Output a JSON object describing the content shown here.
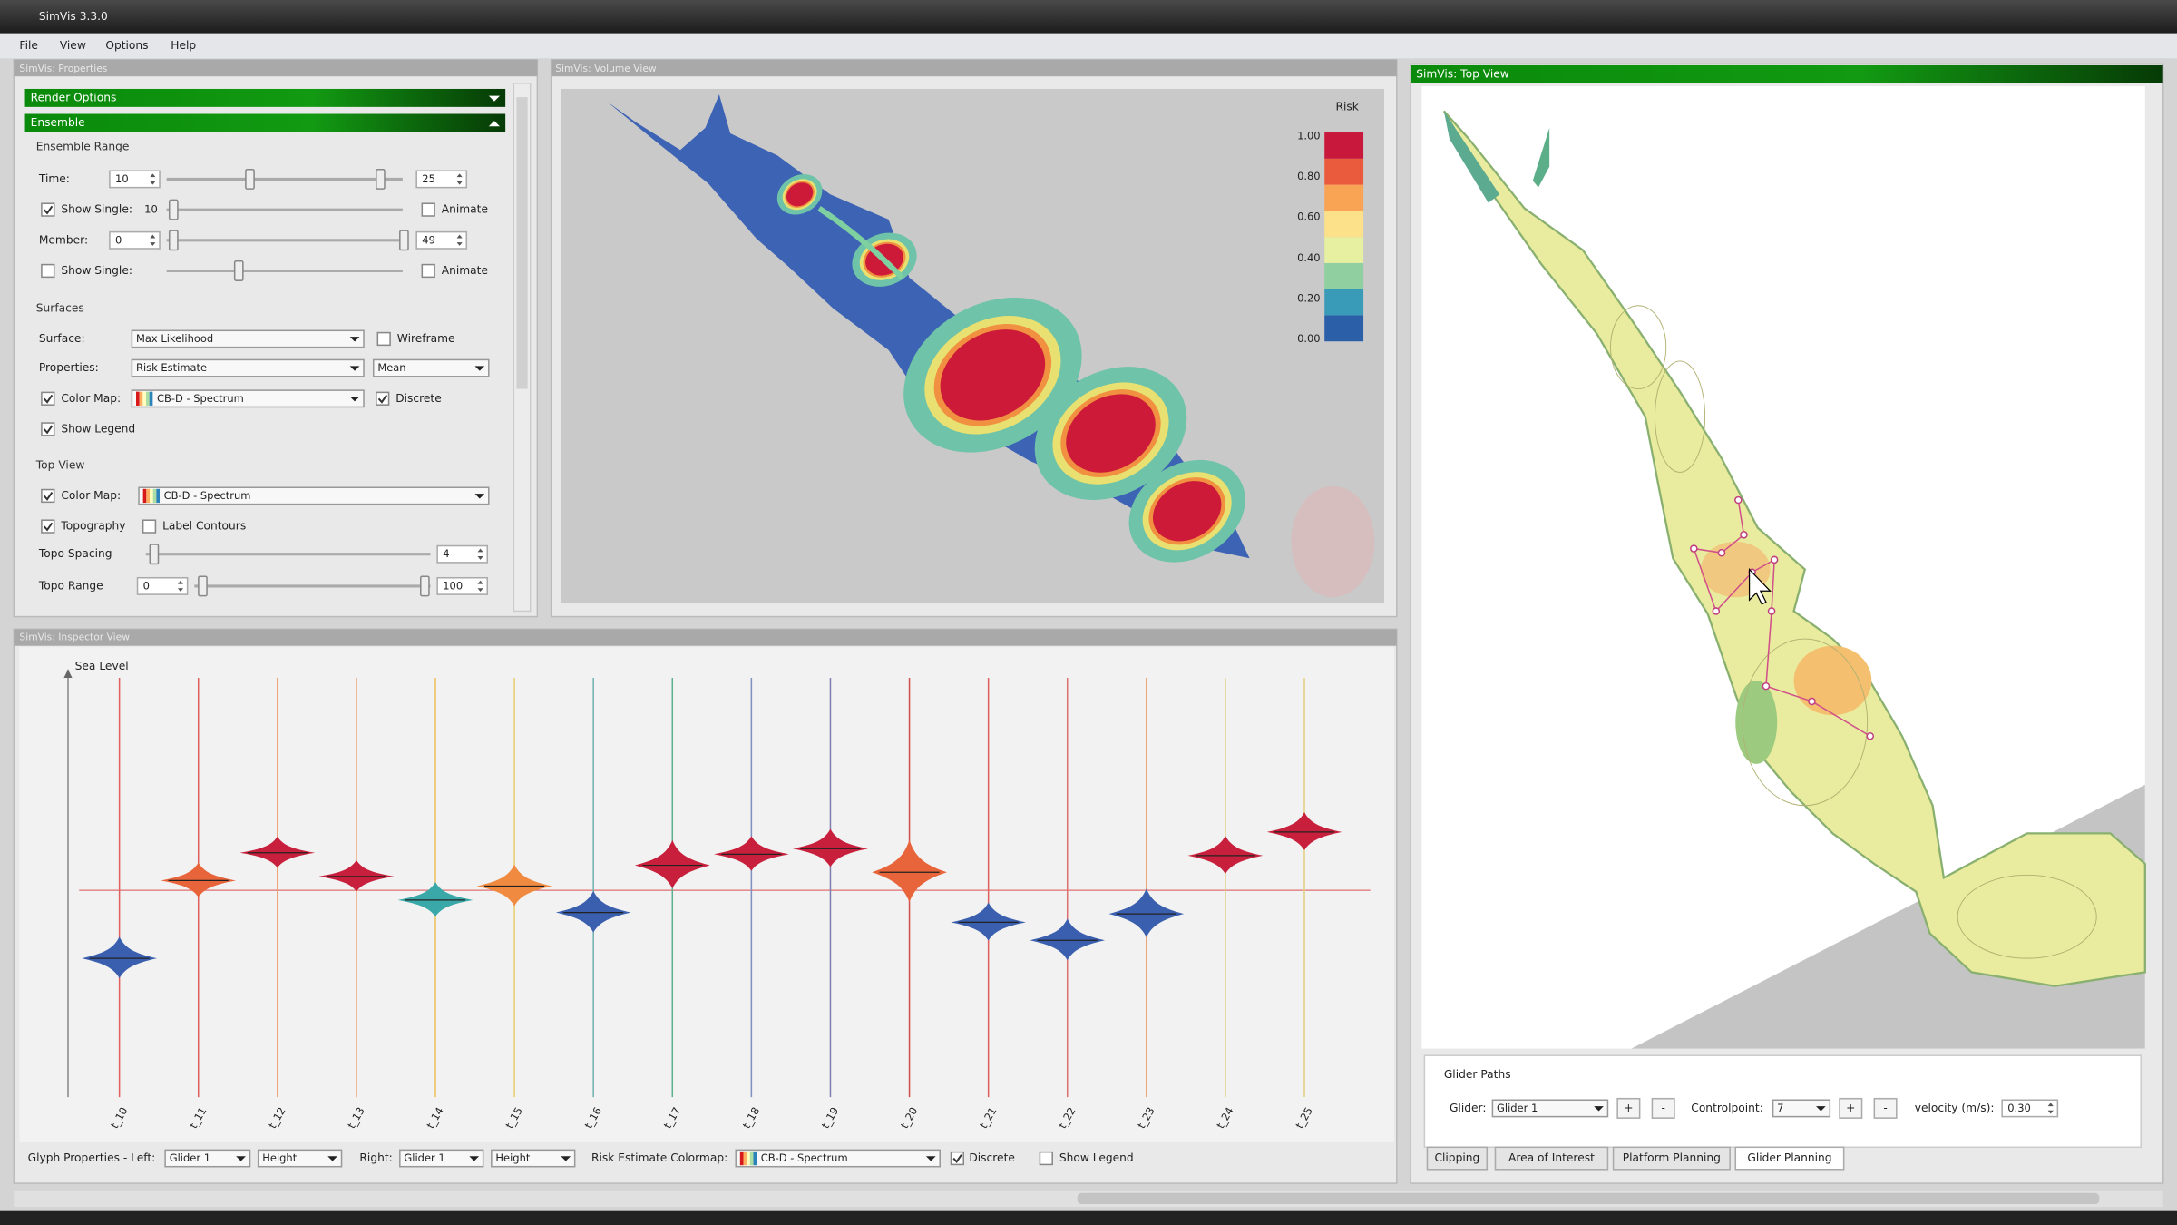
{
  "window": {
    "title": "SimVis 3.3.0",
    "menu": [
      "File",
      "View",
      "Options",
      "Help"
    ]
  },
  "properties_panel": {
    "title": "SimVis: Properties",
    "render_options": "Render Options",
    "ensemble": "Ensemble",
    "ensemble_range": {
      "heading": "Ensemble Range",
      "time_label": "Time:",
      "time_min": "10",
      "time_max": "25",
      "show_single_1": "Show Single:",
      "single_value": "10",
      "animate_1": "Animate",
      "member_label": "Member:",
      "member_min": "0",
      "member_max": "49",
      "show_single_2": "Show Single:",
      "animate_2": "Animate"
    },
    "surfaces": {
      "heading": "Surfaces",
      "surface_label": "Surface:",
      "surface_value": "Max Likelihood",
      "wireframe": "Wireframe",
      "properties_label": "Properties:",
      "properties_value": "Risk Estimate",
      "statistic_value": "Mean",
      "color_map_label": "Color Map:",
      "color_map_value": "CB-D - Spectrum",
      "discrete": "Discrete",
      "show_legend": "Show Legend"
    },
    "top_view": {
      "heading": "Top View",
      "color_map_label": "Color Map:",
      "color_map_value": "CB-D - Spectrum",
      "topography": "Topography",
      "label_contours": "Label Contours",
      "topo_spacing_label": "Topo Spacing",
      "topo_spacing_value": "4",
      "topo_range_label": "Topo Range",
      "topo_range_min": "0",
      "topo_range_max": "100"
    }
  },
  "volume_view": {
    "title": "SimVis: Volume View",
    "legend_title": "Risk",
    "legend_labels": [
      "1.00",
      "0.80",
      "0.60",
      "0.40",
      "0.20",
      "0.00"
    ]
  },
  "top_view": {
    "title": "SimVis: Top View",
    "glider_paths": {
      "heading": "Glider Paths",
      "glider_label": "Glider:",
      "glider_value": "Glider 1",
      "add_1": "+",
      "remove_1": "-",
      "controlpoint_label": "Controlpoint:",
      "controlpoint_value": "7",
      "add_2": "+",
      "remove_2": "-",
      "velocity_label": "velocity (m/s):",
      "velocity_value": "0.30"
    },
    "tabs": [
      "Clipping",
      "Area of Interest",
      "Platform Planning",
      "Glider Planning"
    ]
  },
  "inspector_view": {
    "title": "SimVis: Inspector View",
    "axis_label": "Sea Level",
    "glyph_labels": [
      "t_10",
      "t_11",
      "t_12",
      "t_13",
      "t_14",
      "t_15",
      "t_16",
      "t_17",
      "t_18",
      "t_19",
      "t_20",
      "t_21",
      "t_22",
      "t_23",
      "t_24",
      "t_25"
    ],
    "controls": {
      "left_label": "Glyph Properties - Left:",
      "left_glider": "Glider 1",
      "left_property": "Height",
      "right_label": "Right:",
      "right_glider": "Glider 1",
      "right_property": "Height",
      "colormap_label": "Risk Estimate Colormap:",
      "colormap_value": "CB-D - Spectrum",
      "discrete": "Discrete",
      "show_legend": "Show Legend"
    }
  }
}
